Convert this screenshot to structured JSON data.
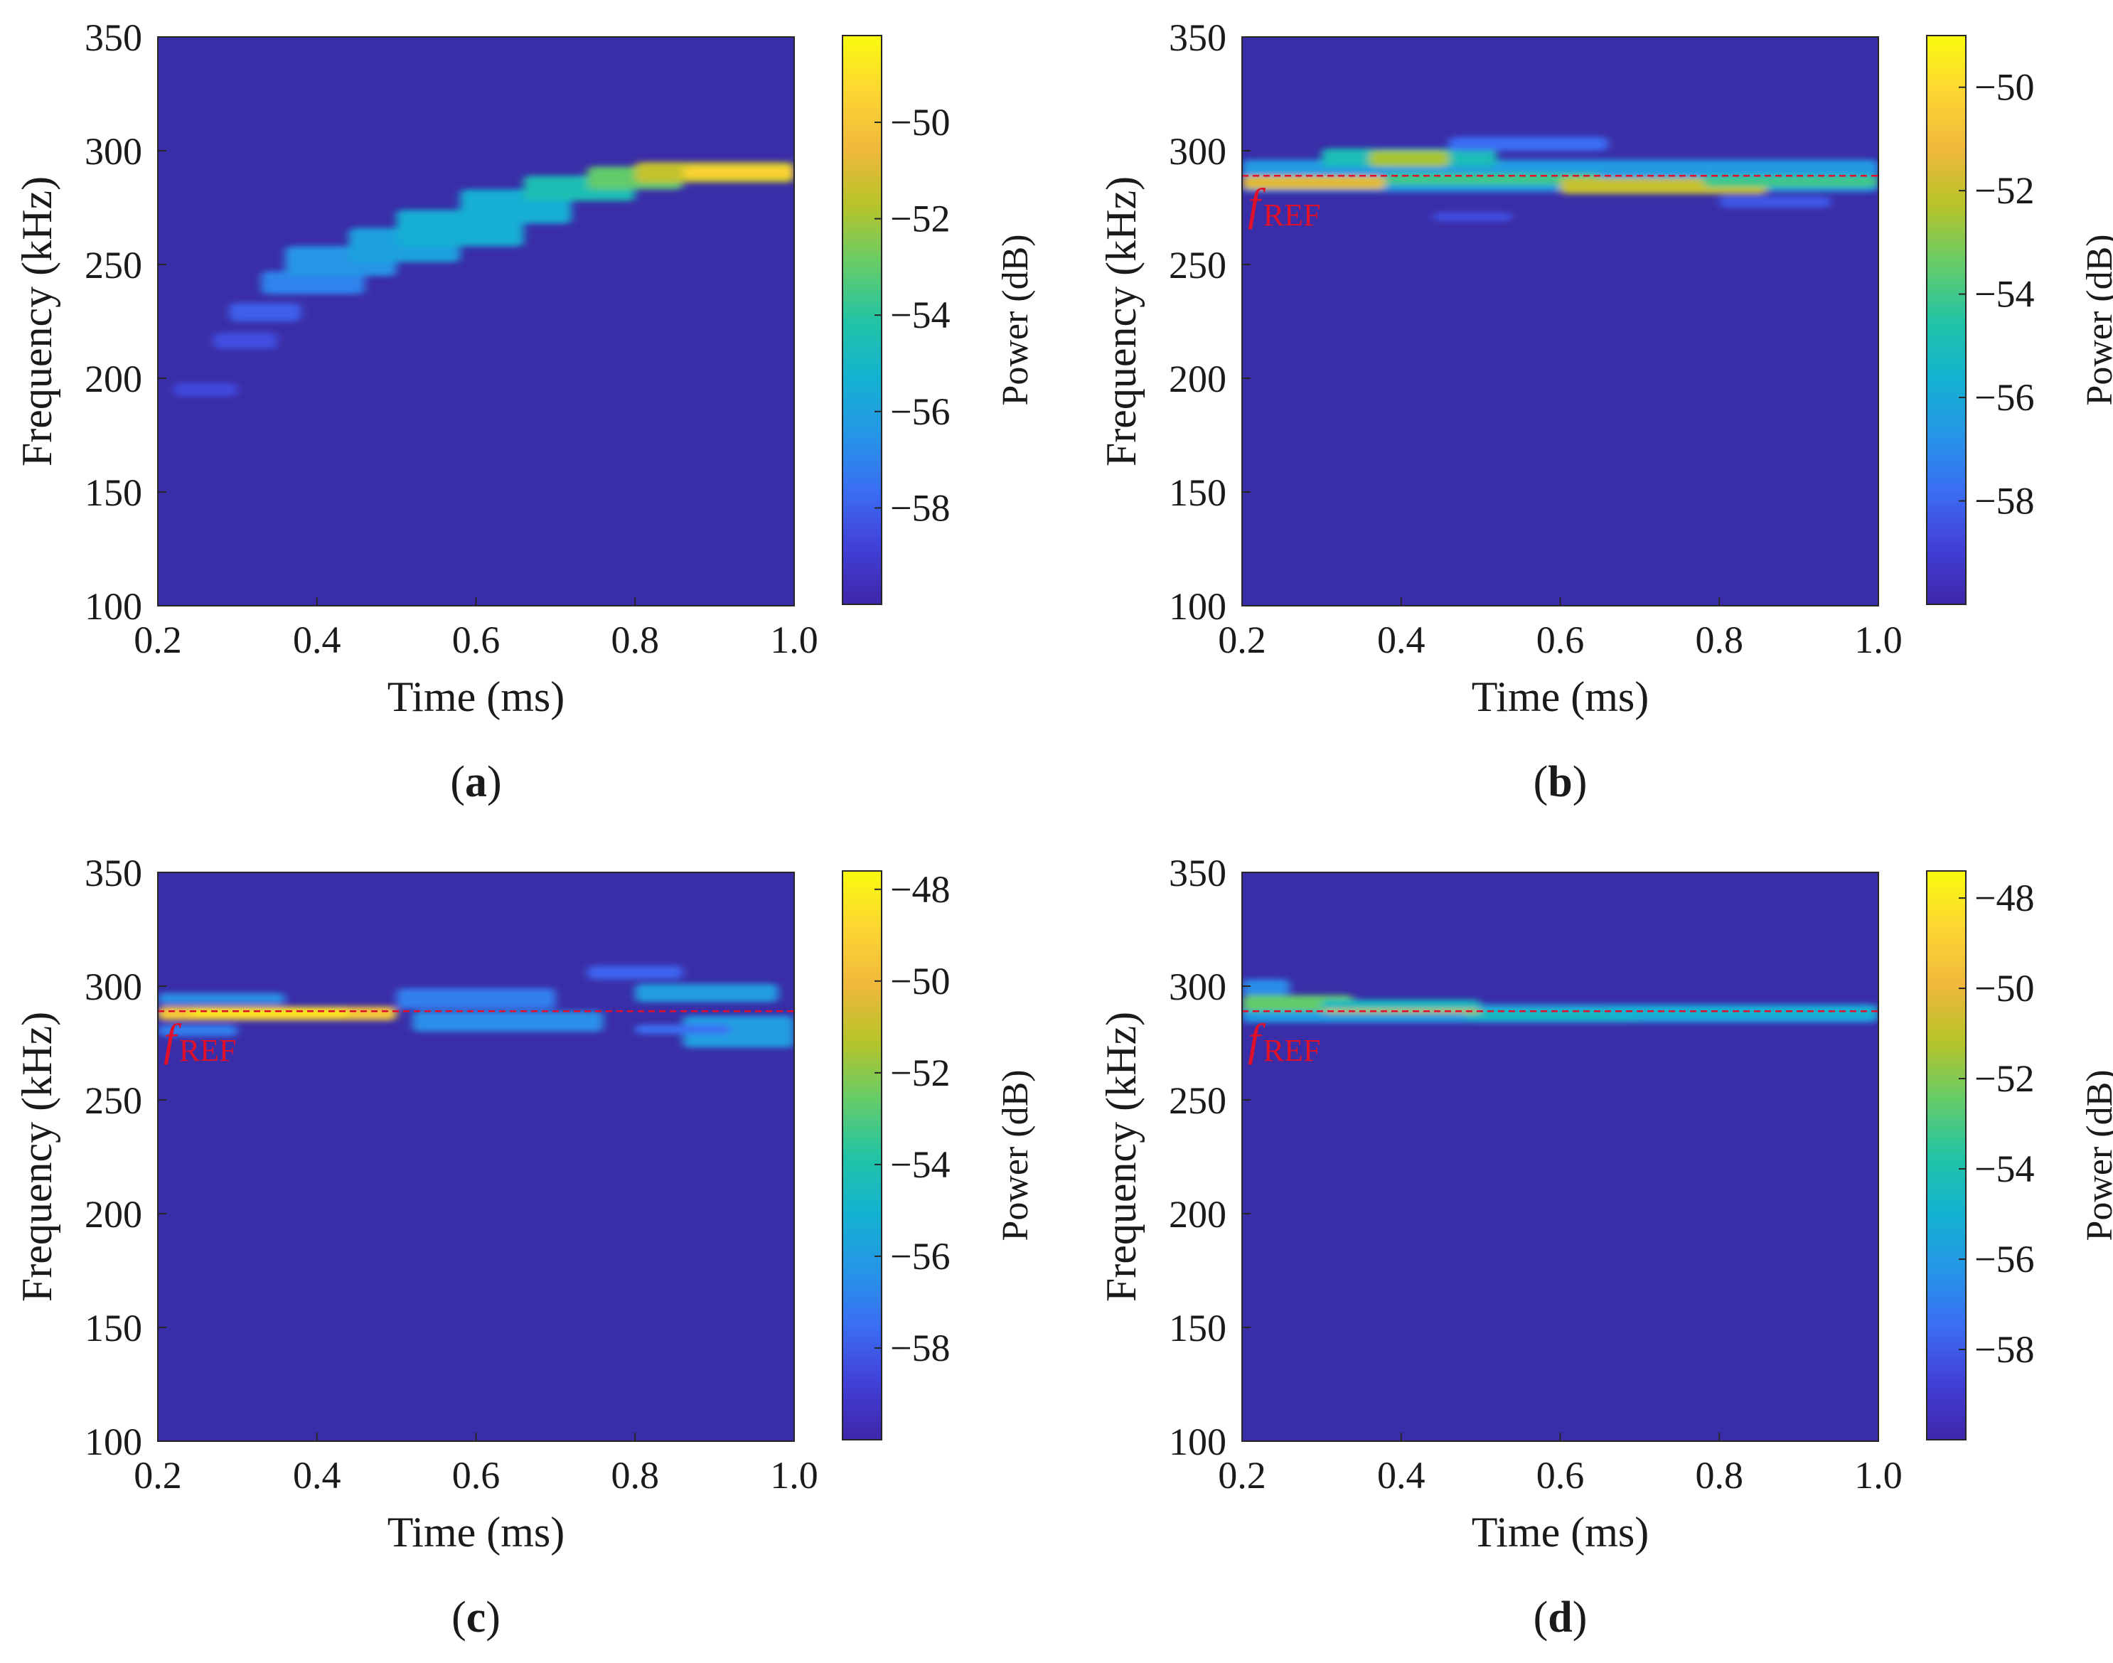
{
  "figure": {
    "colors": {
      "background": "#3a2ea8",
      "colormap": [
        "#3e26a8",
        "#4140d8",
        "#3a6ef4",
        "#2596e6",
        "#13b3d0",
        "#22c4a4",
        "#67cc68",
        "#b6c42a",
        "#f0b83c",
        "#fdd632",
        "#f9fb0e"
      ],
      "reference_line": "#e0102a"
    }
  },
  "chart_data": [
    {
      "id": "a",
      "type": "heatmap",
      "panel_label": "a",
      "xlabel": "Time (ms)",
      "ylabel": "Frequency (kHz)",
      "colorbar_label": "Power (dB)",
      "xlim": [
        0.2,
        1.0
      ],
      "ylim": [
        100,
        350
      ],
      "x_ticks": [
        "0.2",
        "0.4",
        "0.6",
        "0.8",
        "1.0"
      ],
      "x_tick_values": [
        0.2,
        0.4,
        0.6,
        0.8,
        1.0
      ],
      "y_ticks": [
        "100",
        "150",
        "200",
        "250",
        "300",
        "350"
      ],
      "y_tick_values": [
        100,
        150,
        200,
        250,
        300,
        350
      ],
      "clim": [
        -60,
        -48.2
      ],
      "colorbar_ticks": [
        "−50",
        "−52",
        "−54",
        "−56",
        "−58"
      ],
      "colorbar_tick_values": [
        -50,
        -52,
        -54,
        -56,
        -58
      ],
      "reference_line_khz": null,
      "reference_label": null,
      "blobs": [
        {
          "t0": 0.22,
          "t1": 0.3,
          "f0": 192,
          "f1": 198,
          "power": -58.6
        },
        {
          "t0": 0.27,
          "t1": 0.35,
          "f0": 213,
          "f1": 220,
          "power": -58.4
        },
        {
          "t0": 0.29,
          "t1": 0.38,
          "f0": 225,
          "f1": 233,
          "power": -58.0
        },
        {
          "t0": 0.33,
          "t1": 0.46,
          "f0": 237,
          "f1": 247,
          "power": -57.0
        },
        {
          "t0": 0.36,
          "t1": 0.5,
          "f0": 245,
          "f1": 258,
          "power": -56.5
        },
        {
          "t0": 0.44,
          "t1": 0.58,
          "f0": 251,
          "f1": 266,
          "power": -56.0
        },
        {
          "t0": 0.5,
          "t1": 0.66,
          "f0": 258,
          "f1": 274,
          "power": -55.5
        },
        {
          "t0": 0.58,
          "t1": 0.72,
          "f0": 268,
          "f1": 283,
          "power": -55.5
        },
        {
          "t0": 0.66,
          "t1": 0.8,
          "f0": 278,
          "f1": 289,
          "power": -54.5
        },
        {
          "t0": 0.74,
          "t1": 0.86,
          "f0": 283,
          "f1": 293,
          "power": -53.0
        },
        {
          "t0": 0.8,
          "t1": 1.0,
          "f0": 286,
          "f1": 295,
          "power": -51.5
        },
        {
          "t0": 0.86,
          "t1": 1.0,
          "f0": 288,
          "f1": 293,
          "power": -49.5
        }
      ]
    },
    {
      "id": "b",
      "type": "heatmap",
      "panel_label": "b",
      "xlabel": "Time (ms)",
      "ylabel": "Frequency (kHz)",
      "colorbar_label": "Power (dB)",
      "xlim": [
        0.2,
        1.0
      ],
      "ylim": [
        100,
        350
      ],
      "x_ticks": [
        "0.2",
        "0.4",
        "0.6",
        "0.8",
        "1.0"
      ],
      "x_tick_values": [
        0.2,
        0.4,
        0.6,
        0.8,
        1.0
      ],
      "y_ticks": [
        "100",
        "150",
        "200",
        "250",
        "300",
        "350"
      ],
      "y_tick_values": [
        100,
        150,
        200,
        250,
        300,
        350
      ],
      "clim": [
        -60,
        -49
      ],
      "colorbar_ticks": [
        "−50",
        "−52",
        "−54",
        "−56",
        "−58"
      ],
      "colorbar_tick_values": [
        -50,
        -52,
        -54,
        -56,
        -58
      ],
      "reference_line_khz": 289,
      "reference_label": {
        "main": "f",
        "sub": "REF"
      },
      "blobs": [
        {
          "t0": 0.2,
          "t1": 1.0,
          "f0": 282,
          "f1": 296,
          "power": -56.5
        },
        {
          "t0": 0.3,
          "t1": 0.52,
          "f0": 293,
          "f1": 301,
          "power": -55.0
        },
        {
          "t0": 0.46,
          "t1": 0.66,
          "f0": 300,
          "f1": 306,
          "power": -57.8
        },
        {
          "t0": 0.36,
          "t1": 0.46,
          "f0": 293,
          "f1": 300,
          "power": -52.5
        },
        {
          "t0": 0.2,
          "t1": 0.38,
          "f0": 283,
          "f1": 289,
          "power": -51.5
        },
        {
          "t0": 0.38,
          "t1": 0.65,
          "f0": 285,
          "f1": 290,
          "power": -54.0
        },
        {
          "t0": 0.6,
          "t1": 0.86,
          "f0": 281,
          "f1": 288,
          "power": -52.0
        },
        {
          "t0": 0.78,
          "t1": 1.0,
          "f0": 284,
          "f1": 289,
          "power": -54.0
        },
        {
          "t0": 0.8,
          "t1": 0.94,
          "f0": 275,
          "f1": 280,
          "power": -58.3
        },
        {
          "t0": 0.44,
          "t1": 0.54,
          "f0": 269,
          "f1": 273,
          "power": -58.6
        }
      ]
    },
    {
      "id": "c",
      "type": "heatmap",
      "panel_label": "c",
      "xlabel": "Time (ms)",
      "ylabel": "Frequency (kHz)",
      "colorbar_label": "Power (dB)",
      "xlim": [
        0.2,
        1.0
      ],
      "ylim": [
        100,
        350
      ],
      "x_ticks": [
        "0.2",
        "0.4",
        "0.6",
        "0.8",
        "1.0"
      ],
      "x_tick_values": [
        0.2,
        0.4,
        0.6,
        0.8,
        1.0
      ],
      "y_ticks": [
        "100",
        "150",
        "200",
        "250",
        "300",
        "350"
      ],
      "y_tick_values": [
        100,
        150,
        200,
        250,
        300,
        350
      ],
      "clim": [
        -60,
        -47.6
      ],
      "colorbar_ticks": [
        "−48",
        "−50",
        "−52",
        "−54",
        "−56",
        "−58"
      ],
      "colorbar_tick_values": [
        -48,
        -50,
        -52,
        -54,
        -56,
        -58
      ],
      "reference_line_khz": 289,
      "reference_label": {
        "main": "f",
        "sub": "REF"
      },
      "blobs": [
        {
          "t0": 0.2,
          "t1": 0.36,
          "f0": 292,
          "f1": 297,
          "power": -56.5
        },
        {
          "t0": 0.2,
          "t1": 0.3,
          "f0": 278,
          "f1": 283,
          "power": -57.0
        },
        {
          "t0": 0.5,
          "t1": 0.7,
          "f0": 290,
          "f1": 299,
          "power": -57.0
        },
        {
          "t0": 0.74,
          "t1": 0.86,
          "f0": 303,
          "f1": 309,
          "power": -57.8
        },
        {
          "t0": 0.8,
          "t1": 0.98,
          "f0": 293,
          "f1": 301,
          "power": -56.0
        },
        {
          "t0": 0.52,
          "t1": 0.76,
          "f0": 280,
          "f1": 289,
          "power": -56.5
        },
        {
          "t0": 0.86,
          "t1": 1.0,
          "f0": 273,
          "f1": 287,
          "power": -56.0
        },
        {
          "t0": 0.8,
          "t1": 0.92,
          "f0": 279,
          "f1": 283,
          "power": -57.5
        },
        {
          "t0": 0.2,
          "t1": 0.5,
          "f0": 285,
          "f1": 291,
          "power": -49.5
        },
        {
          "t0": 0.24,
          "t1": 0.44,
          "f0": 286.5,
          "f1": 290,
          "power": -48.2
        }
      ]
    },
    {
      "id": "d",
      "type": "heatmap",
      "panel_label": "d",
      "xlabel": "Time (ms)",
      "ylabel": "Frequency (kHz)",
      "colorbar_label": "Power (dB)",
      "xlim": [
        0.2,
        1.0
      ],
      "ylim": [
        100,
        350
      ],
      "x_ticks": [
        "0.2",
        "0.4",
        "0.6",
        "0.8",
        "1.0"
      ],
      "x_tick_values": [
        0.2,
        0.4,
        0.6,
        0.8,
        1.0
      ],
      "y_ticks": [
        "100",
        "150",
        "200",
        "250",
        "300",
        "350"
      ],
      "y_tick_values": [
        100,
        150,
        200,
        250,
        300,
        350
      ],
      "clim": [
        -60,
        -47.4
      ],
      "colorbar_ticks": [
        "−48",
        "−50",
        "−52",
        "−54",
        "−56",
        "−58"
      ],
      "colorbar_tick_values": [
        -48,
        -50,
        -52,
        -54,
        -56,
        -58
      ],
      "reference_line_khz": 289,
      "reference_label": {
        "main": "f",
        "sub": "REF"
      },
      "blobs": [
        {
          "t0": 0.2,
          "t1": 0.26,
          "f0": 296,
          "f1": 303,
          "power": -56.5
        },
        {
          "t0": 0.2,
          "t1": 1.0,
          "f0": 284,
          "f1": 292,
          "power": -56.0
        },
        {
          "t0": 0.2,
          "t1": 0.34,
          "f0": 289,
          "f1": 296,
          "power": -52.5
        },
        {
          "t0": 0.3,
          "t1": 0.5,
          "f0": 289,
          "f1": 294,
          "power": -54.5
        },
        {
          "t0": 0.48,
          "t1": 0.7,
          "f0": 285,
          "f1": 290,
          "power": -54.5
        },
        {
          "t0": 0.66,
          "t1": 1.0,
          "f0": 286,
          "f1": 291,
          "power": -55.0
        },
        {
          "t0": 0.3,
          "t1": 0.5,
          "f0": 288,
          "f1": 290,
          "power": -51.0
        }
      ]
    }
  ]
}
